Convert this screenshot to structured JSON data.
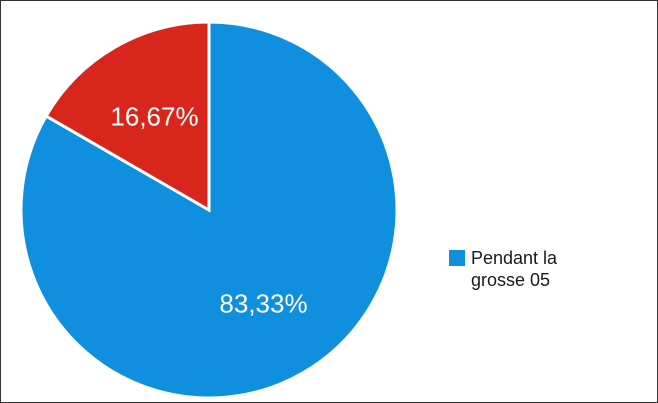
{
  "chart_data": {
    "type": "pie",
    "title": "",
    "slices": [
      {
        "label": "83,33%",
        "value": 83.33,
        "color": "#0f8fdd"
      },
      {
        "label": "16,67%",
        "value": 16.67,
        "color": "#d8261c"
      }
    ],
    "legend": {
      "position": "right",
      "entries": [
        {
          "name": "Pendant la grosse 05",
          "color": "#0f8fdd"
        }
      ]
    }
  }
}
